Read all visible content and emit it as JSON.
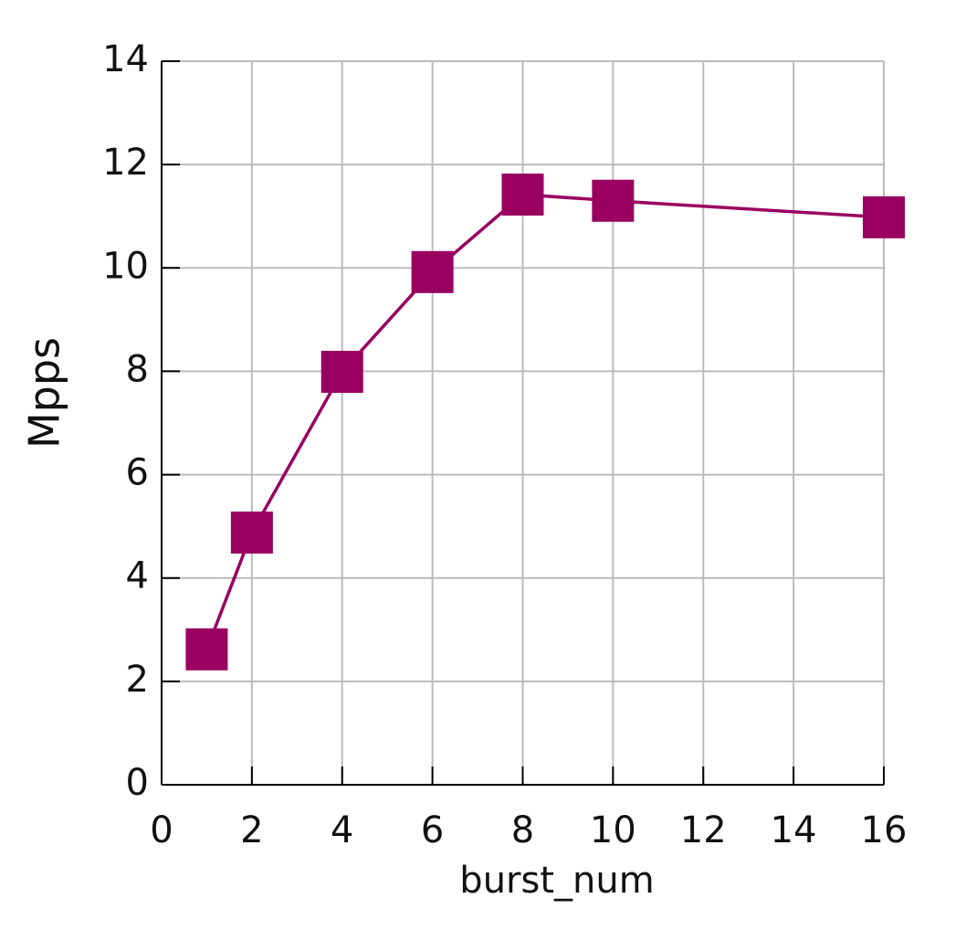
{
  "chart_data": {
    "type": "line",
    "x_label": "burst_num",
    "y_label": "Mpps",
    "series": [
      {
        "name": "Mpps",
        "color": "#990060",
        "x": [
          1,
          2,
          4,
          6,
          8,
          10,
          16
        ],
        "values": [
          2.62,
          4.88,
          7.99,
          9.92,
          11.42,
          11.3,
          10.98
        ]
      }
    ],
    "xlim": [
      0,
      16
    ],
    "xticks": [
      0,
      2,
      4,
      6,
      8,
      10,
      12,
      14,
      16
    ],
    "ylim": [
      0,
      14
    ],
    "yticks": [
      0,
      2,
      4,
      6,
      8,
      10,
      12,
      14
    ],
    "grid": true
  }
}
